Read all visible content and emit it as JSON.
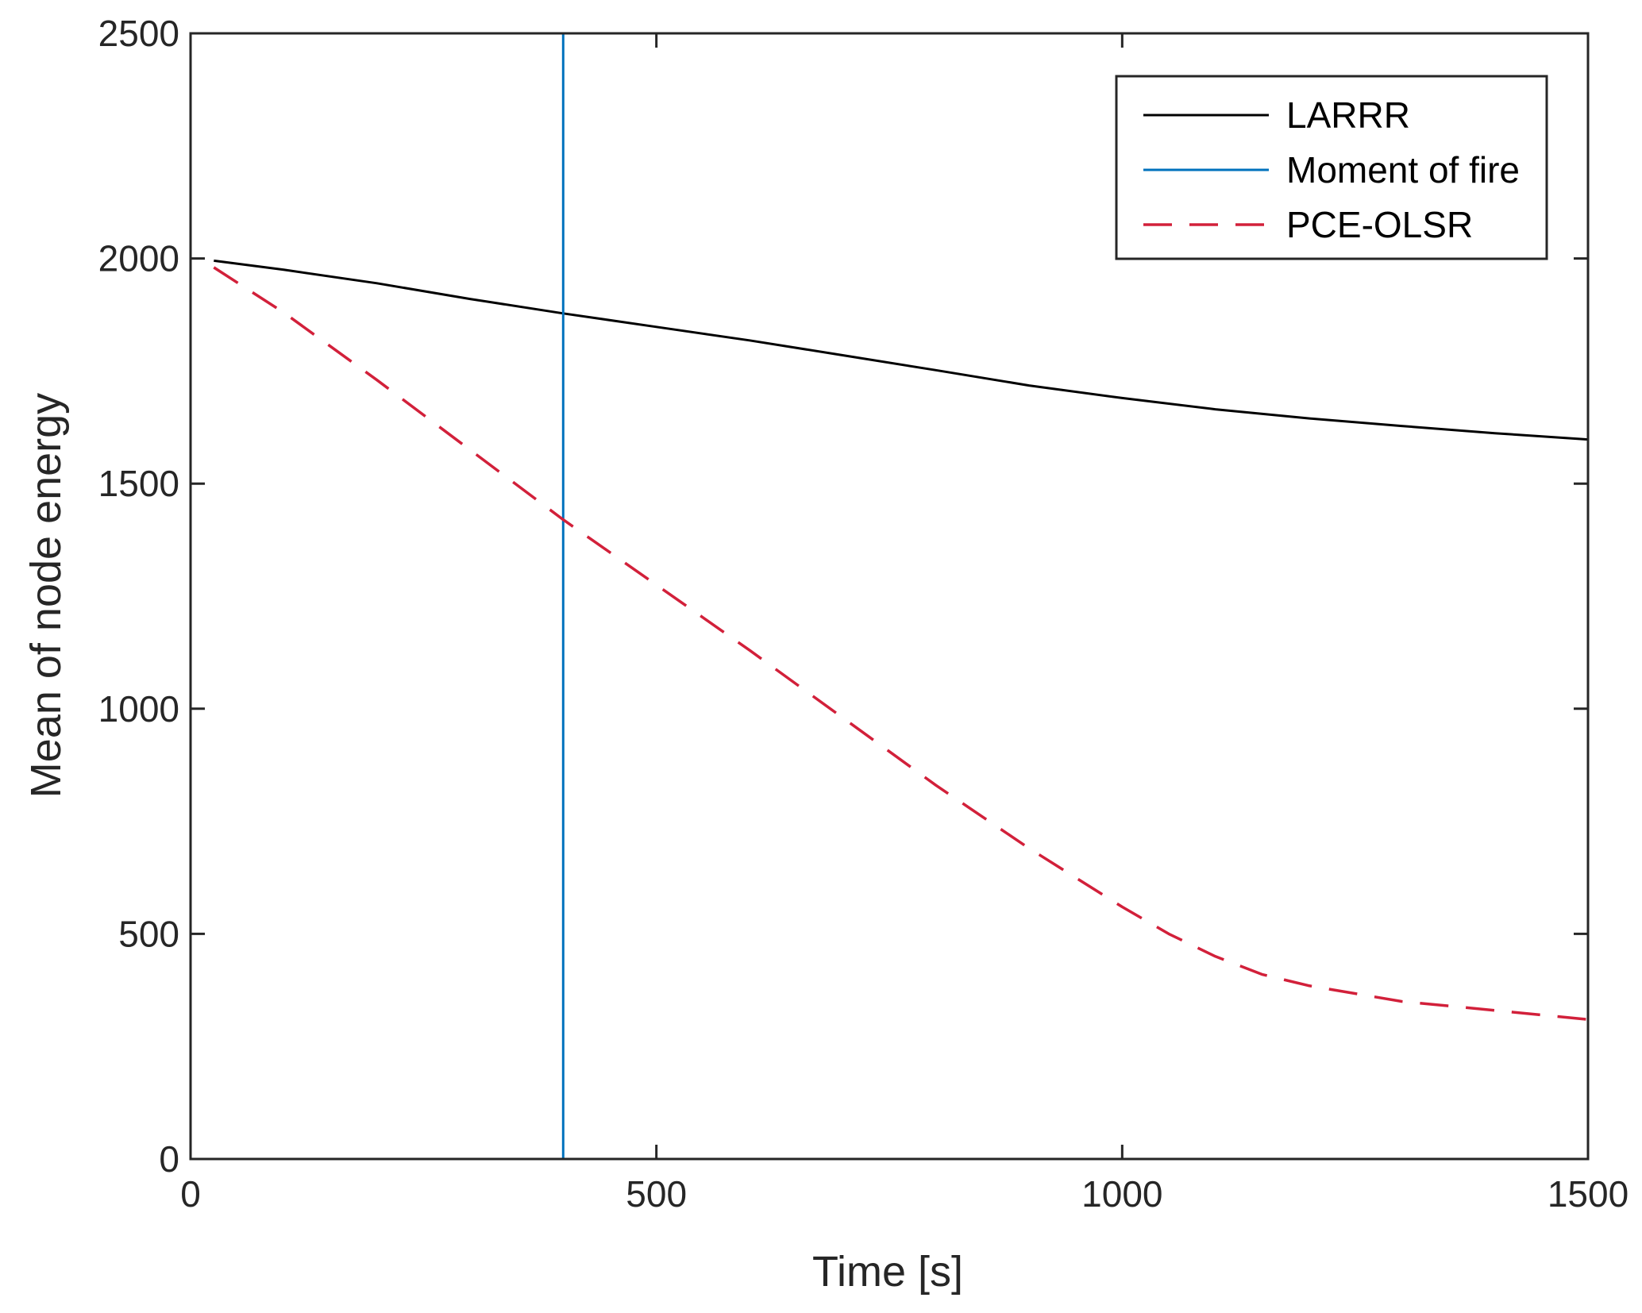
{
  "chart_data": {
    "type": "line",
    "xlabel": "Time [s]",
    "ylabel": "Mean of node energy",
    "xlim": [
      0,
      1500
    ],
    "ylim": [
      0,
      2500
    ],
    "xticks": [
      0,
      500,
      1000,
      1500
    ],
    "yticks": [
      0,
      500,
      1000,
      1500,
      2000,
      2500
    ],
    "grid": false,
    "legend_position": "top-right",
    "series": [
      {
        "name": "LARRR",
        "color": "#000000",
        "style": "solid",
        "x": [
          25,
          100,
          200,
          300,
          400,
          500,
          600,
          700,
          800,
          900,
          1000,
          1100,
          1200,
          1300,
          1400,
          1500
        ],
        "y": [
          1995,
          1975,
          1945,
          1910,
          1878,
          1848,
          1818,
          1785,
          1752,
          1718,
          1690,
          1665,
          1645,
          1628,
          1612,
          1598
        ]
      },
      {
        "name": "Moment of fire",
        "color": "#0072BD",
        "style": "solid",
        "x": [
          400,
          400
        ],
        "y": [
          0,
          2500
        ]
      },
      {
        "name": "PCE-OLSR",
        "color": "#D2203A",
        "style": "dashed",
        "x": [
          25,
          100,
          200,
          300,
          400,
          500,
          600,
          700,
          800,
          900,
          1000,
          1050,
          1100,
          1150,
          1200,
          1300,
          1400,
          1500
        ],
        "y": [
          1980,
          1880,
          1730,
          1575,
          1420,
          1275,
          1130,
          980,
          830,
          690,
          560,
          500,
          450,
          410,
          385,
          350,
          330,
          310
        ]
      }
    ]
  }
}
